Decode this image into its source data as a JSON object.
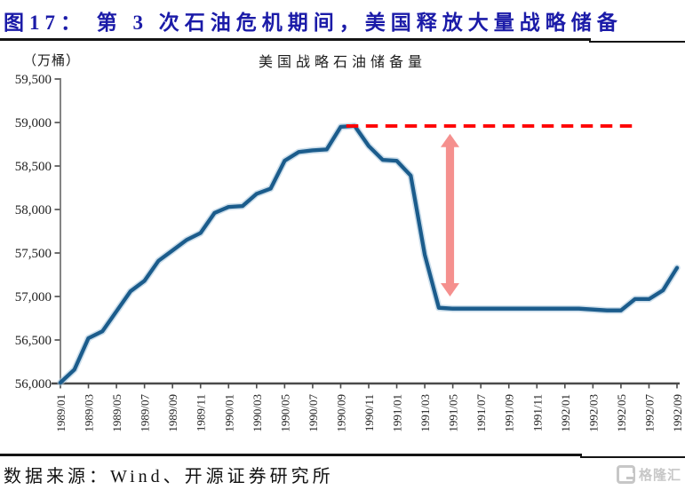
{
  "header": {
    "title": "图17：  第 3 次石油危机期间，美国释放大量战略储备"
  },
  "chart": {
    "unit_label": "（万桶）",
    "title": "美国战略石油储备量"
  },
  "chart_data": {
    "type": "line",
    "title": "美国战略石油储备量",
    "unit": "万桶",
    "xlabel": "",
    "ylabel": "",
    "ylim": [
      56000,
      59500
    ],
    "y_ticks": [
      56000,
      56500,
      57000,
      57500,
      58000,
      58500,
      59000,
      59500
    ],
    "x_tick_every": 2,
    "grid": false,
    "legend": false,
    "categories": [
      "1989/01",
      "1989/02",
      "1989/03",
      "1989/04",
      "1989/05",
      "1989/06",
      "1989/07",
      "1989/08",
      "1989/09",
      "1989/10",
      "1989/11",
      "1989/12",
      "1990/01",
      "1990/02",
      "1990/03",
      "1990/04",
      "1990/05",
      "1990/06",
      "1990/07",
      "1990/08",
      "1990/09",
      "1990/10",
      "1990/11",
      "1990/12",
      "1991/01",
      "1991/02",
      "1991/03",
      "1991/04",
      "1991/05",
      "1991/06",
      "1991/07",
      "1991/08",
      "1991/09",
      "1991/10",
      "1991/11",
      "1991/12",
      "1992/01",
      "1992/02",
      "1992/03",
      "1992/04",
      "1992/05",
      "1992/06",
      "1992/07",
      "1992/08",
      "1992/09"
    ],
    "series": [
      {
        "name": "美国战略石油储备量",
        "color": "#1b5c8c",
        "values": [
          56010,
          56160,
          56520,
          56600,
          56830,
          57060,
          57180,
          57410,
          57530,
          57650,
          57730,
          57960,
          58030,
          58040,
          58180,
          58240,
          58560,
          58660,
          58680,
          58690,
          58950,
          58960,
          58730,
          58570,
          58560,
          58390,
          57480,
          56870,
          56860,
          56860,
          56860,
          56860,
          56860,
          56860,
          56860,
          56860,
          56860,
          56860,
          56850,
          56840,
          56840,
          56970,
          56970,
          57070,
          57330
        ]
      }
    ],
    "annotations": {
      "dashed_peak_line": {
        "value": 58960,
        "from_index": 20.4,
        "to_index": 41,
        "color": "#fe0000"
      },
      "release_arrow": {
        "x_index": 27.8,
        "top_value": 58870,
        "bottom_value": 57000,
        "color": "#f5908e"
      }
    },
    "axis_color": "#4a4a4a",
    "tick_label_color": "#1f1f1f"
  },
  "footer": {
    "source": "数据来源：Wind、开源证券研究所",
    "logo_text": "格隆汇"
  }
}
